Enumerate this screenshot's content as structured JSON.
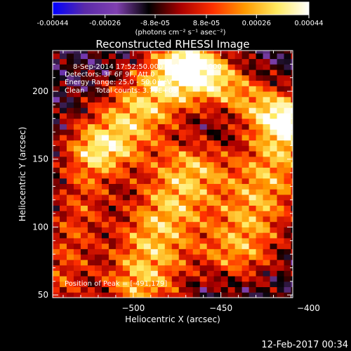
{
  "chart_data": {
    "type": "heatmap",
    "title": "Reconstructed RHESSI Image",
    "xlabel": "Heliocentric X (arcsec)",
    "ylabel": "Heliocentric Y (arcsec)",
    "xlim": [
      -546,
      -409
    ],
    "ylim": [
      48,
      230
    ],
    "x_ticks": [
      -500,
      -450,
      -400
    ],
    "y_ticks": [
      50,
      100,
      150,
      200
    ],
    "colorbar": {
      "unit_label": "(photons cm⁻² s⁻¹ asec⁻²)",
      "range": [
        -0.00044,
        0.00044
      ],
      "tick_values": [
        -0.00044,
        -0.00026,
        -8.8e-05,
        8.8e-05,
        0.00026,
        0.00044
      ],
      "tick_labels": [
        "-0.00044",
        "-0.00026",
        "-8.8e-05",
        "8.8e-05",
        "0.00026",
        "0.00044"
      ],
      "colors": [
        "#0000ff",
        "#5a2aa8",
        "#8040b0",
        "#000000",
        "#aa0000",
        "#ff3000",
        "#ff9a00",
        "#ffea60",
        "#ffffff"
      ]
    },
    "annotations": [
      "8-Sep-2014 17:52:50.000 to 18:02:50.000",
      "Detectors: 3F 6F 9F, Att 0",
      "Energy Range: 25.0 - 50.0 keV",
      "Clean     Total counts: 3.71E+03"
    ],
    "peak_label": "Position of Peak = [-491,179]",
    "peak_position": [
      -491,
      179
    ],
    "sources": [
      {
        "path": [
          [
            -495,
            60
          ],
          [
            -485,
            100
          ],
          [
            -468,
            140
          ]
        ],
        "width": 16,
        "amplitude": 0.0004
      },
      {
        "path": [
          [
            -512,
            165
          ],
          [
            -493,
            190
          ],
          [
            -470,
            215
          ]
        ],
        "width": 16,
        "amplitude": 0.00042
      },
      {
        "path": [
          [
            -440,
            85
          ],
          [
            -425,
            130
          ],
          [
            -410,
            175
          ]
        ],
        "width": 16,
        "amplitude": 0.00036
      },
      {
        "path": [
          [
            -470,
            220
          ],
          [
            -442,
            200
          ],
          [
            -415,
            180
          ]
        ],
        "width": 12,
        "amplitude": 0.0003
      },
      {
        "path": [
          [
            -544,
            55
          ],
          [
            -533,
            100
          ],
          [
            -524,
            150
          ]
        ],
        "width": 12,
        "amplitude": 0.00022
      }
    ],
    "background": -0.00012
  },
  "footer": {
    "timestamp": "12-Feb-2017 00:34"
  }
}
